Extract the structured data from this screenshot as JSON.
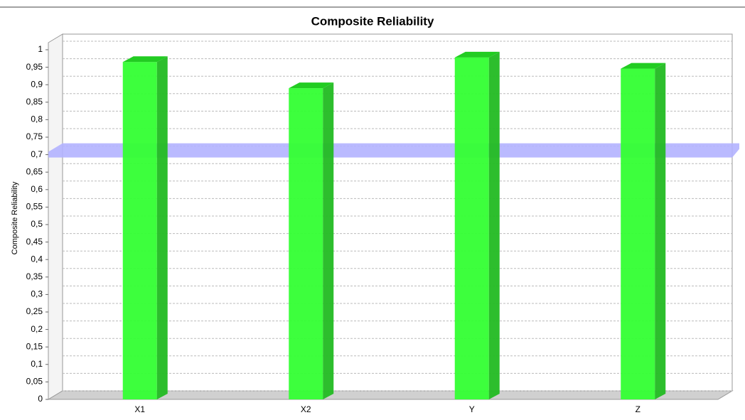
{
  "chart_data": {
    "type": "bar",
    "title": "Composite Reliability",
    "y_label": "Composite Reliability",
    "categories": [
      "X1",
      "X2",
      "Y",
      "Z"
    ],
    "values": [
      0.965,
      0.89,
      0.978,
      0.946
    ],
    "color": "#33ff33",
    "threshold": 0.7,
    "threshold_color": "#b3b3ff",
    "ylim": [
      0,
      1
    ],
    "yticks": [
      0,
      {
        "value": 0.05,
        "label": "0,05"
      },
      {
        "value": 0.1,
        "label": "0,1"
      },
      {
        "value": 0.15,
        "label": "0,15"
      },
      {
        "value": 0.2,
        "label": "0,2"
      },
      {
        "value": 0.25,
        "label": "0,25"
      },
      {
        "value": 0.3,
        "label": "0,3"
      },
      {
        "value": 0.35,
        "label": "0,35"
      },
      {
        "value": 0.4,
        "label": "0,4"
      },
      {
        "value": 0.45,
        "label": "0,45"
      },
      {
        "value": 0.5,
        "label": "0,5"
      },
      {
        "value": 0.55,
        "label": "0,55"
      },
      {
        "value": 0.6,
        "label": "0,6"
      },
      {
        "value": 0.65,
        "label": "0,65"
      },
      {
        "value": 0.7,
        "label": "0,7"
      },
      {
        "value": 0.75,
        "label": "0,75"
      },
      {
        "value": 0.8,
        "label": "0,8"
      },
      {
        "value": 0.85,
        "label": "0,85"
      },
      {
        "value": 0.9,
        "label": "0,9"
      },
      {
        "value": 0.95,
        "label": "0,95"
      },
      1
    ],
    "grid": true
  }
}
